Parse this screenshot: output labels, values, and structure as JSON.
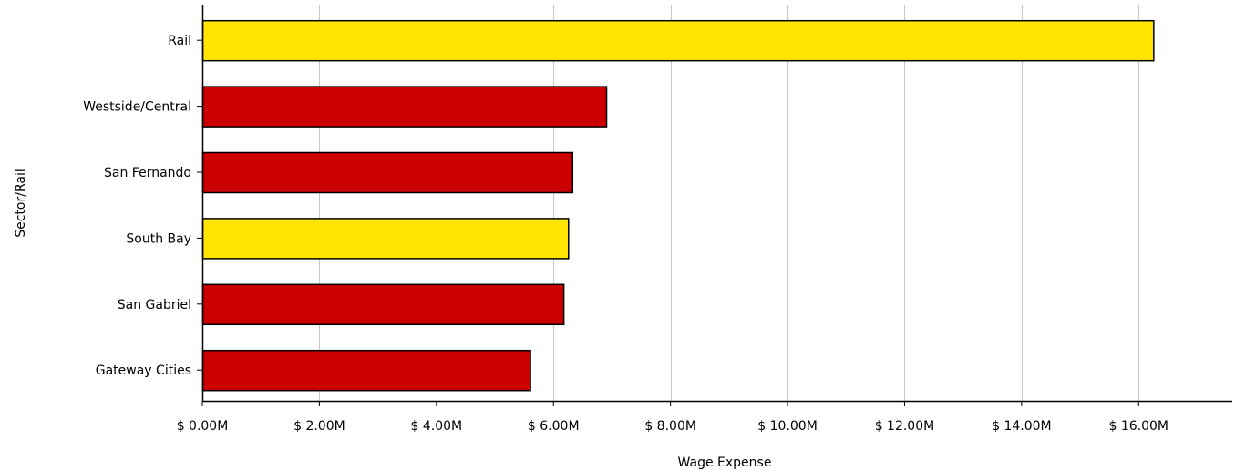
{
  "chart_data": {
    "type": "bar",
    "orientation": "horizontal",
    "title": "",
    "xlabel": "Wage Expense",
    "ylabel": "Sector/Rail",
    "categories": [
      "Rail",
      "Westside/Central",
      "San Fernando",
      "South Bay",
      "San Gabriel",
      "Gateway Cities"
    ],
    "values": [
      16.25,
      6.9,
      6.32,
      6.25,
      6.17,
      5.6
    ],
    "value_unit": "$M",
    "bar_colors": [
      "#FFE500",
      "#CC0000",
      "#CC0000",
      "#FFE500",
      "#CC0000",
      "#CC0000"
    ],
    "xlim": [
      0,
      17.6
    ],
    "xticks": [
      0,
      2,
      4,
      6,
      8,
      10,
      12,
      14,
      16
    ],
    "xtick_labels": [
      "$ 0.00M",
      "$ 2.00M",
      "$ 4.00M",
      "$ 6.00M",
      "$ 8.00M",
      "$ 10.00M",
      "$ 12.00M",
      "$ 14.00M",
      "$ 16.00M"
    ],
    "grid": true,
    "legend": false
  },
  "colors": {
    "grid": "#c8c8c8",
    "axis": "#000000",
    "bar_outline": "#000000"
  }
}
